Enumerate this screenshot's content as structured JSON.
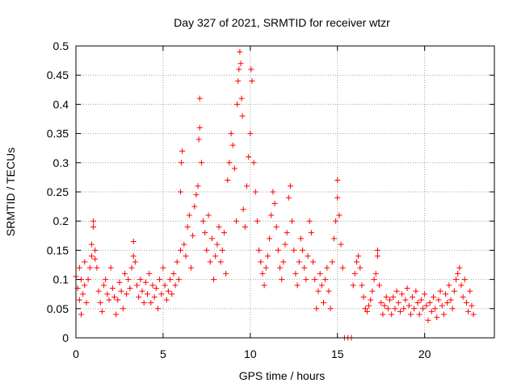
{
  "chart_data": {
    "type": "scatter",
    "title": "Day 327 of 2021, SRMTID for receiver wtzr",
    "xlabel": "GPS time / hours",
    "ylabel": "SRMTID / TECUs",
    "xlim": [
      0,
      24
    ],
    "ylim": [
      0,
      0.5
    ],
    "x_ticks": [
      0,
      5,
      10,
      15,
      20
    ],
    "x_tick_labels": [
      "0",
      "5",
      "10",
      "15",
      "20"
    ],
    "y_ticks": [
      0,
      0.05,
      0.1,
      0.15,
      0.2,
      0.25,
      0.3,
      0.35,
      0.4,
      0.45,
      0.5
    ],
    "y_tick_labels": [
      "0",
      "0.05",
      "0.1",
      "0.15",
      "0.2",
      "0.25",
      "0.3",
      "0.35",
      "0.4",
      "0.45",
      "0.5"
    ],
    "grid": true,
    "marker": "+",
    "colors": {
      "points": "#ff0000",
      "grid": "#a0a0a0",
      "axes": "#000000"
    },
    "series": [
      {
        "name": "SRMTID",
        "points": [
          [
            0.0,
            0.105
          ],
          [
            0.1,
            0.085
          ],
          [
            0.2,
            0.065
          ],
          [
            0.2,
            0.12
          ],
          [
            0.3,
            0.04
          ],
          [
            0.3,
            0.1
          ],
          [
            0.4,
            0.075
          ],
          [
            0.5,
            0.09
          ],
          [
            0.5,
            0.13
          ],
          [
            0.6,
            0.06
          ],
          [
            0.7,
            0.1
          ],
          [
            0.8,
            0.12
          ],
          [
            0.9,
            0.14
          ],
          [
            0.9,
            0.16
          ],
          [
            1.0,
            0.2
          ],
          [
            1.0,
            0.19
          ],
          [
            1.1,
            0.135
          ],
          [
            1.1,
            0.15
          ],
          [
            1.2,
            0.12
          ],
          [
            1.3,
            0.08
          ],
          [
            1.4,
            0.06
          ],
          [
            1.5,
            0.045
          ],
          [
            1.6,
            0.09
          ],
          [
            1.7,
            0.1
          ],
          [
            1.8,
            0.075
          ],
          [
            1.9,
            0.065
          ],
          [
            2.0,
            0.12
          ],
          [
            2.1,
            0.085
          ],
          [
            2.2,
            0.07
          ],
          [
            2.3,
            0.04
          ],
          [
            2.4,
            0.065
          ],
          [
            2.5,
            0.095
          ],
          [
            2.6,
            0.08
          ],
          [
            2.7,
            0.05
          ],
          [
            2.8,
            0.11
          ],
          [
            2.9,
            0.075
          ],
          [
            3.0,
            0.1
          ],
          [
            3.1,
            0.085
          ],
          [
            3.2,
            0.12
          ],
          [
            3.3,
            0.14
          ],
          [
            3.3,
            0.165
          ],
          [
            3.4,
            0.13
          ],
          [
            3.5,
            0.09
          ],
          [
            3.6,
            0.07
          ],
          [
            3.7,
            0.1
          ],
          [
            3.8,
            0.08
          ],
          [
            3.9,
            0.06
          ],
          [
            4.0,
            0.095
          ],
          [
            4.1,
            0.075
          ],
          [
            4.2,
            0.11
          ],
          [
            4.3,
            0.06
          ],
          [
            4.4,
            0.09
          ],
          [
            4.5,
            0.07
          ],
          [
            4.6,
            0.085
          ],
          [
            4.7,
            0.05
          ],
          [
            4.8,
            0.1
          ],
          [
            4.9,
            0.075
          ],
          [
            5.0,
            0.12
          ],
          [
            5.1,
            0.09
          ],
          [
            5.2,
            0.065
          ],
          [
            5.3,
            0.08
          ],
          [
            5.4,
            0.1
          ],
          [
            5.5,
            0.075
          ],
          [
            5.6,
            0.11
          ],
          [
            5.7,
            0.09
          ],
          [
            5.8,
            0.13
          ],
          [
            5.9,
            0.1
          ],
          [
            6.0,
            0.15
          ],
          [
            6.0,
            0.25
          ],
          [
            6.05,
            0.3
          ],
          [
            6.1,
            0.32
          ],
          [
            6.2,
            0.16
          ],
          [
            6.3,
            0.14
          ],
          [
            6.4,
            0.19
          ],
          [
            6.5,
            0.21
          ],
          [
            6.6,
            0.12
          ],
          [
            6.7,
            0.175
          ],
          [
            6.8,
            0.225
          ],
          [
            6.9,
            0.245
          ],
          [
            7.0,
            0.26
          ],
          [
            7.05,
            0.34
          ],
          [
            7.1,
            0.36
          ],
          [
            7.1,
            0.41
          ],
          [
            7.2,
            0.3
          ],
          [
            7.3,
            0.2
          ],
          [
            7.4,
            0.18
          ],
          [
            7.5,
            0.15
          ],
          [
            7.6,
            0.21
          ],
          [
            7.7,
            0.13
          ],
          [
            7.8,
            0.17
          ],
          [
            7.9,
            0.1
          ],
          [
            8.0,
            0.14
          ],
          [
            8.1,
            0.16
          ],
          [
            8.2,
            0.19
          ],
          [
            8.3,
            0.13
          ],
          [
            8.4,
            0.15
          ],
          [
            8.5,
            0.18
          ],
          [
            8.6,
            0.11
          ],
          [
            8.7,
            0.27
          ],
          [
            8.8,
            0.3
          ],
          [
            8.9,
            0.35
          ],
          [
            9.0,
            0.33
          ],
          [
            9.1,
            0.29
          ],
          [
            9.2,
            0.2
          ],
          [
            9.25,
            0.4
          ],
          [
            9.3,
            0.44
          ],
          [
            9.35,
            0.46
          ],
          [
            9.4,
            0.49
          ],
          [
            9.45,
            0.47
          ],
          [
            9.5,
            0.41
          ],
          [
            9.55,
            0.38
          ],
          [
            9.6,
            0.22
          ],
          [
            9.7,
            0.19
          ],
          [
            9.8,
            0.26
          ],
          [
            9.9,
            0.31
          ],
          [
            10.0,
            0.35
          ],
          [
            10.05,
            0.46
          ],
          [
            10.1,
            0.44
          ],
          [
            10.2,
            0.3
          ],
          [
            10.3,
            0.25
          ],
          [
            10.4,
            0.2
          ],
          [
            10.5,
            0.15
          ],
          [
            10.6,
            0.13
          ],
          [
            10.7,
            0.11
          ],
          [
            10.8,
            0.09
          ],
          [
            10.9,
            0.12
          ],
          [
            11.0,
            0.14
          ],
          [
            11.1,
            0.17
          ],
          [
            11.2,
            0.21
          ],
          [
            11.3,
            0.25
          ],
          [
            11.4,
            0.23
          ],
          [
            11.5,
            0.19
          ],
          [
            11.6,
            0.15
          ],
          [
            11.7,
            0.12
          ],
          [
            11.8,
            0.1
          ],
          [
            11.9,
            0.13
          ],
          [
            12.0,
            0.16
          ],
          [
            12.1,
            0.18
          ],
          [
            12.2,
            0.24
          ],
          [
            12.3,
            0.26
          ],
          [
            12.4,
            0.2
          ],
          [
            12.5,
            0.15
          ],
          [
            12.6,
            0.11
          ],
          [
            12.7,
            0.09
          ],
          [
            12.8,
            0.13
          ],
          [
            12.9,
            0.17
          ],
          [
            13.0,
            0.15
          ],
          [
            13.1,
            0.12
          ],
          [
            13.2,
            0.1
          ],
          [
            13.3,
            0.14
          ],
          [
            13.4,
            0.2
          ],
          [
            13.5,
            0.18
          ],
          [
            13.6,
            0.13
          ],
          [
            13.7,
            0.1
          ],
          [
            13.8,
            0.05
          ],
          [
            13.9,
            0.08
          ],
          [
            14.0,
            0.11
          ],
          [
            14.1,
            0.09
          ],
          [
            14.2,
            0.06
          ],
          [
            14.3,
            0.1
          ],
          [
            14.4,
            0.12
          ],
          [
            14.5,
            0.08
          ],
          [
            14.6,
            0.05
          ],
          [
            14.7,
            0.13
          ],
          [
            14.8,
            0.17
          ],
          [
            14.9,
            0.2
          ],
          [
            15.0,
            0.24
          ],
          [
            15.0,
            0.27
          ],
          [
            15.1,
            0.21
          ],
          [
            15.2,
            0.16
          ],
          [
            15.3,
            0.12
          ],
          [
            15.4,
            0.0
          ],
          [
            15.6,
            0.0
          ],
          [
            15.8,
            0.0
          ],
          [
            15.9,
            0.09
          ],
          [
            16.0,
            0.11
          ],
          [
            16.1,
            0.13
          ],
          [
            16.2,
            0.14
          ],
          [
            16.3,
            0.12
          ],
          [
            16.4,
            0.09
          ],
          [
            16.5,
            0.07
          ],
          [
            16.6,
            0.05
          ],
          [
            16.7,
            0.045
          ],
          [
            16.8,
            0.055
          ],
          [
            16.9,
            0.065
          ],
          [
            17.0,
            0.08
          ],
          [
            17.1,
            0.1
          ],
          [
            17.2,
            0.11
          ],
          [
            17.3,
            0.14
          ],
          [
            17.3,
            0.15
          ],
          [
            17.4,
            0.09
          ],
          [
            17.5,
            0.06
          ],
          [
            17.6,
            0.04
          ],
          [
            17.7,
            0.055
          ],
          [
            17.8,
            0.07
          ],
          [
            17.9,
            0.05
          ],
          [
            18.0,
            0.065
          ],
          [
            18.1,
            0.04
          ],
          [
            18.2,
            0.07
          ],
          [
            18.3,
            0.05
          ],
          [
            18.4,
            0.08
          ],
          [
            18.5,
            0.06
          ],
          [
            18.6,
            0.045
          ],
          [
            18.7,
            0.075
          ],
          [
            18.8,
            0.05
          ],
          [
            18.9,
            0.065
          ],
          [
            19.0,
            0.085
          ],
          [
            19.1,
            0.055
          ],
          [
            19.2,
            0.04
          ],
          [
            19.3,
            0.07
          ],
          [
            19.4,
            0.05
          ],
          [
            19.5,
            0.08
          ],
          [
            19.6,
            0.06
          ],
          [
            19.7,
            0.04
          ],
          [
            19.8,
            0.065
          ],
          [
            19.9,
            0.05
          ],
          [
            20.0,
            0.075
          ],
          [
            20.1,
            0.055
          ],
          [
            20.2,
            0.03
          ],
          [
            20.3,
            0.06
          ],
          [
            20.4,
            0.045
          ],
          [
            20.5,
            0.07
          ],
          [
            20.6,
            0.05
          ],
          [
            20.7,
            0.035
          ],
          [
            20.8,
            0.065
          ],
          [
            20.9,
            0.08
          ],
          [
            21.0,
            0.055
          ],
          [
            21.1,
            0.04
          ],
          [
            21.2,
            0.075
          ],
          [
            21.3,
            0.06
          ],
          [
            21.4,
            0.09
          ],
          [
            21.5,
            0.065
          ],
          [
            21.6,
            0.05
          ],
          [
            21.7,
            0.08
          ],
          [
            21.8,
            0.1
          ],
          [
            21.9,
            0.11
          ],
          [
            22.0,
            0.12
          ],
          [
            22.1,
            0.09
          ],
          [
            22.2,
            0.07
          ],
          [
            22.3,
            0.1
          ],
          [
            22.4,
            0.06
          ],
          [
            22.5,
            0.045
          ],
          [
            22.6,
            0.08
          ],
          [
            22.7,
            0.055
          ],
          [
            22.8,
            0.04
          ]
        ]
      }
    ]
  }
}
